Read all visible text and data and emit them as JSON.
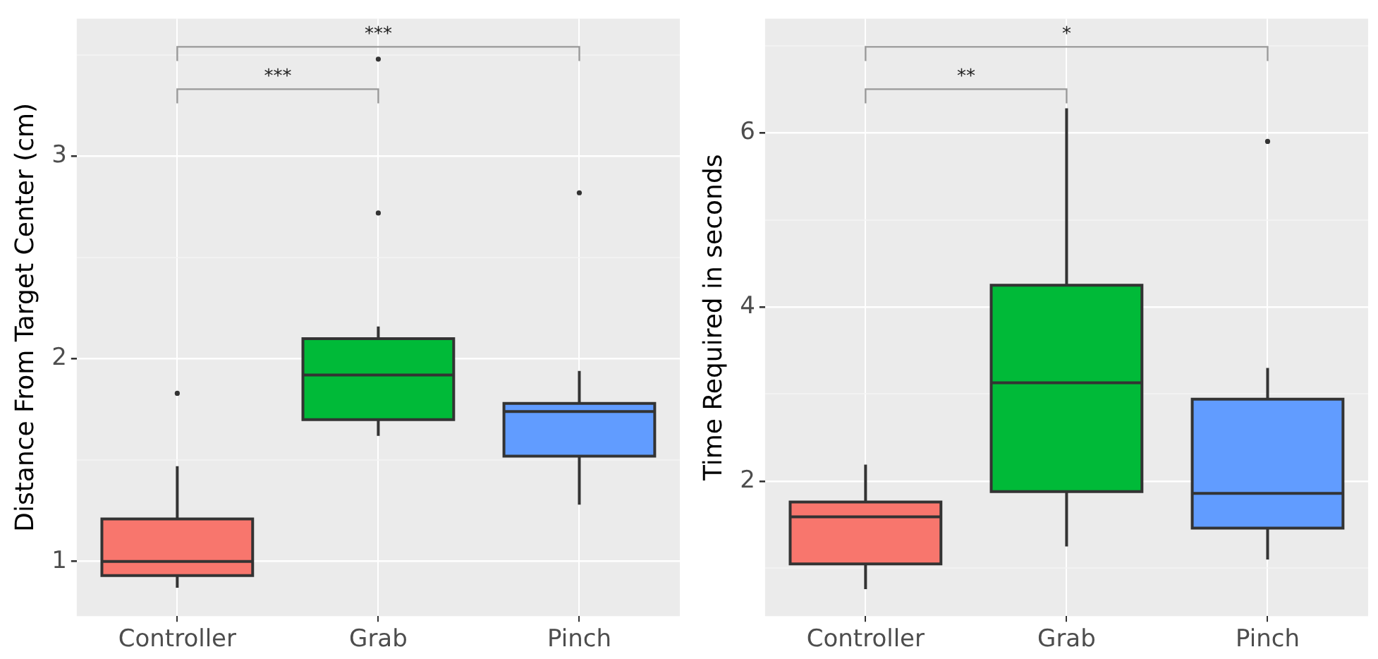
{
  "chart_data": [
    {
      "type": "box",
      "categories": [
        "Controller",
        "Grab",
        "Pinch"
      ],
      "colors": [
        "#f8766d",
        "#00ba38",
        "#619cff"
      ],
      "ylabel": "Distance From Target Center (cm)",
      "ylim": [
        0.73,
        3.68
      ],
      "yticks": [
        1,
        {
          "value": 1.5,
          "label": null
        },
        2,
        {
          "value": 2.5,
          "label": null
        },
        3,
        {
          "value": 3.5,
          "label": null
        }
      ],
      "grid": true,
      "boxes": [
        {
          "low": 0.87,
          "q1": 0.93,
          "median": 1.0,
          "q3": 1.21,
          "high": 1.47,
          "outliers": [
            1.83
          ]
        },
        {
          "low": 1.62,
          "q1": 1.7,
          "median": 1.92,
          "q3": 2.1,
          "high": 2.16,
          "outliers": [
            2.72,
            3.48
          ]
        },
        {
          "low": 1.28,
          "q1": 1.52,
          "median": 1.74,
          "q3": 1.78,
          "high": 1.94,
          "outliers": [
            2.82
          ]
        }
      ],
      "annotations": [
        "***",
        "***"
      ]
    },
    {
      "type": "box",
      "categories": [
        "Controller",
        "Grab",
        "Pinch"
      ],
      "colors": [
        "#f8766d",
        "#00ba38",
        "#619cff"
      ],
      "ylabel": "Time Required in seconds",
      "ylim": [
        0.45,
        7.31
      ],
      "yticks": [
        {
          "value": 1,
          "label": null
        },
        2,
        {
          "value": 3,
          "label": null
        },
        4,
        {
          "value": 5,
          "label": null
        },
        6,
        {
          "value": 7,
          "label": null
        }
      ],
      "grid": true,
      "boxes": [
        {
          "low": 0.76,
          "q1": 1.05,
          "median": 1.59,
          "q3": 1.76,
          "high": 2.19
        },
        {
          "low": 1.25,
          "q1": 1.88,
          "median": 3.13,
          "q3": 4.25,
          "high": 6.28
        },
        {
          "low": 1.1,
          "q1": 1.46,
          "median": 1.86,
          "q3": 2.94,
          "high": 3.3,
          "outliers": [
            5.9
          ]
        }
      ],
      "annotations": [
        "*",
        "**"
      ]
    }
  ]
}
